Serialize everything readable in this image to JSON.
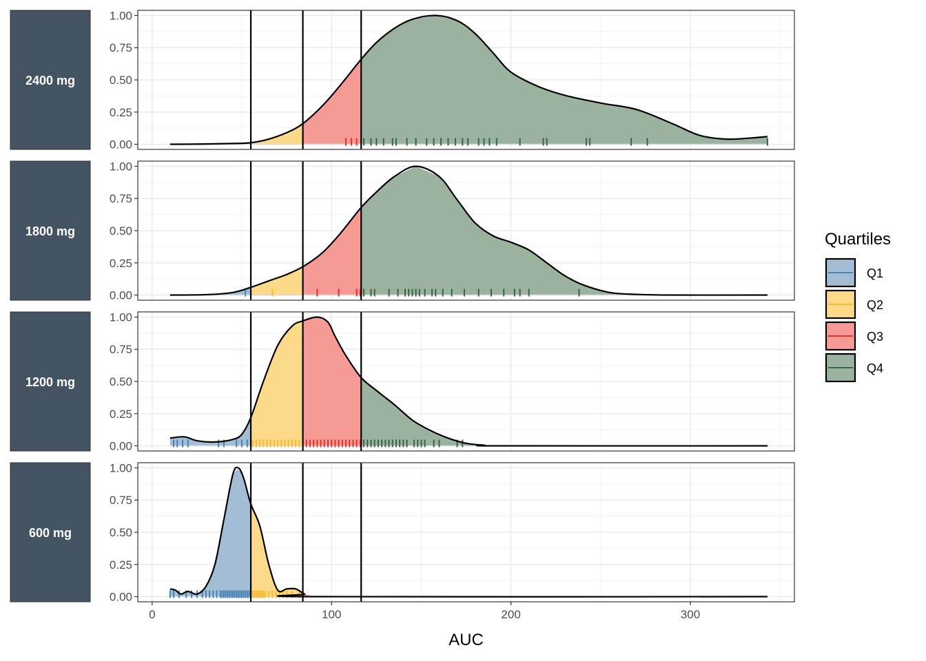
{
  "chart_data": {
    "type": "area",
    "xlabel": "AUC",
    "ylabel": "",
    "xlim": [
      -8,
      358
    ],
    "ylim": [
      -0.04,
      1.04
    ],
    "x_ticks": [
      0,
      100,
      200,
      300
    ],
    "x_tick_labels": [
      "0",
      "100",
      "200",
      "300"
    ],
    "y_ticks": [
      0,
      0.25,
      0.5,
      0.75,
      1
    ],
    "y_tick_labels": [
      "0.00",
      "0.25",
      "0.50",
      "0.75",
      "1.00"
    ],
    "quartile_cutoffs": [
      55,
      84,
      116.5
    ],
    "grid": true,
    "legend": {
      "title": "Quartiles",
      "placement": "right",
      "entries": [
        {
          "label": "Q1",
          "fill": "#a3bdd4",
          "line": "#4682b4"
        },
        {
          "label": "Q2",
          "fill": "#fdd98a",
          "line": "#fbb829"
        },
        {
          "label": "Q3",
          "fill": "#f59a94",
          "line": "#e8302a"
        },
        {
          "label": "Q4",
          "fill": "#9ab29e",
          "line": "#3a6447"
        }
      ]
    },
    "panels": [
      {
        "label": "2400 mg",
        "density": {
          "x": [
            10,
            30,
            45,
            55,
            65,
            75,
            84,
            95,
            105,
            116.5,
            125,
            135,
            145,
            158,
            170,
            180,
            190,
            200,
            215,
            230,
            250,
            270,
            290,
            305,
            320,
            335,
            343
          ],
          "y": [
            0,
            0.002,
            0.006,
            0.012,
            0.04,
            0.09,
            0.16,
            0.3,
            0.46,
            0.66,
            0.79,
            0.9,
            0.97,
            1.0,
            0.96,
            0.86,
            0.71,
            0.56,
            0.45,
            0.38,
            0.32,
            0.27,
            0.16,
            0.07,
            0.04,
            0.05,
            0.06
          ]
        },
        "rug": [
          108,
          111,
          114,
          118,
          122,
          125,
          129,
          134,
          136,
          142,
          147,
          153,
          157,
          161,
          165,
          169,
          173,
          176,
          182,
          185,
          188,
          192,
          205,
          218,
          220,
          242,
          244,
          267,
          276,
          343
        ]
      },
      {
        "label": "1800 mg",
        "density": {
          "x": [
            10,
            30,
            45,
            55,
            65,
            75,
            84,
            95,
            105,
            116.5,
            125,
            135,
            147,
            160,
            170,
            180,
            190,
            200,
            210,
            220,
            230,
            240,
            255,
            270,
            290,
            343
          ],
          "y": [
            0,
            0.003,
            0.02,
            0.06,
            0.11,
            0.16,
            0.22,
            0.33,
            0.48,
            0.68,
            0.8,
            0.92,
            1.0,
            0.92,
            0.74,
            0.56,
            0.46,
            0.41,
            0.35,
            0.25,
            0.15,
            0.08,
            0.02,
            0.005,
            0,
            0
          ]
        },
        "rug": [
          52,
          67,
          92,
          104,
          114,
          116,
          118,
          122,
          124,
          132,
          137,
          141,
          143,
          145,
          147,
          149,
          152,
          156,
          158,
          162,
          167,
          174,
          182,
          189,
          196,
          202,
          205,
          210,
          238
        ]
      },
      {
        "label": "1200 mg",
        "density": {
          "x": [
            10,
            18,
            25,
            35,
            45,
            50,
            55,
            62,
            70,
            78,
            84,
            92,
            98,
            102,
            108,
            116.5,
            125,
            135,
            145,
            155,
            165,
            175,
            185,
            195,
            343
          ],
          "y": [
            0.06,
            0.07,
            0.04,
            0.03,
            0.05,
            0.09,
            0.22,
            0.5,
            0.78,
            0.93,
            0.97,
            1.0,
            0.96,
            0.85,
            0.7,
            0.53,
            0.43,
            0.32,
            0.2,
            0.12,
            0.06,
            0.02,
            0.005,
            0,
            0
          ]
        },
        "rug": [
          12,
          14,
          17,
          20,
          37,
          40,
          47,
          50,
          53,
          56,
          58,
          60,
          62,
          64,
          66,
          68,
          70,
          72,
          74,
          76,
          78,
          80,
          82,
          84,
          86,
          88,
          90,
          92,
          94,
          96,
          98,
          100,
          102,
          104,
          106,
          108,
          110,
          112,
          114,
          116,
          118,
          120,
          122,
          124,
          126,
          128,
          130,
          132,
          134,
          136,
          138,
          140,
          142,
          146,
          148,
          150,
          152,
          157,
          160,
          170,
          173
        ]
      },
      {
        "label": "600 mg",
        "density": {
          "x": [
            10,
            13,
            16,
            20,
            25,
            30,
            35,
            40,
            45,
            48,
            51,
            55,
            60,
            65,
            70,
            75,
            80,
            85,
            90,
            343
          ],
          "y": [
            0.06,
            0.05,
            0.02,
            0.04,
            0.02,
            0.08,
            0.25,
            0.6,
            0.95,
            1.0,
            0.92,
            0.72,
            0.55,
            0.25,
            0.05,
            0.06,
            0.06,
            0.02,
            0,
            0
          ]
        },
        "rug": [
          10,
          12,
          15,
          19,
          22,
          25,
          28,
          30,
          32,
          34,
          36,
          38,
          39,
          40,
          41,
          42,
          43,
          44,
          45,
          46,
          47,
          48,
          49,
          50,
          51,
          52,
          53,
          54,
          55,
          56,
          57,
          58,
          59,
          60,
          61,
          62,
          63,
          65,
          67,
          69,
          71,
          73,
          75,
          78,
          82
        ]
      }
    ]
  }
}
